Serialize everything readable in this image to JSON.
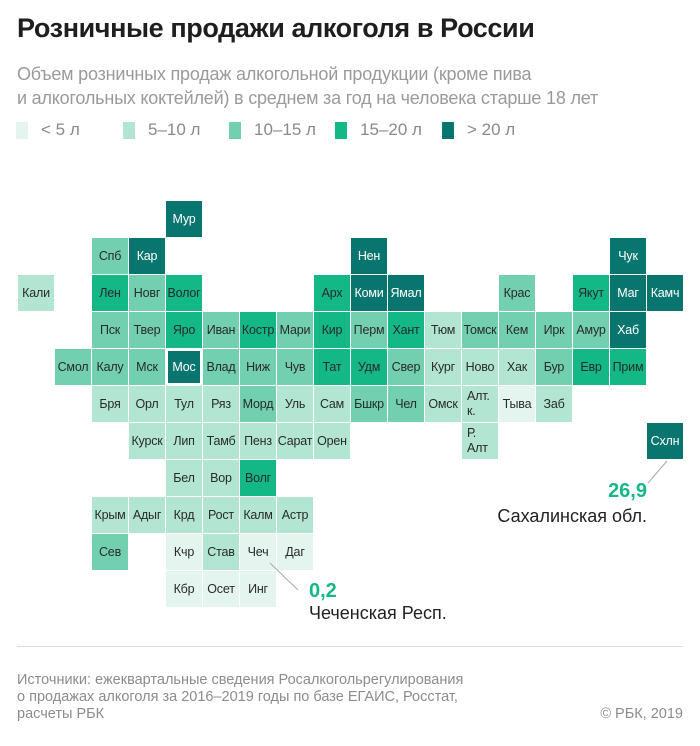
{
  "header": {
    "title": "Розничные продажи алкоголя в России",
    "subtitle_line1": "Объем розничных продаж алкогольной продукции (кроме пива",
    "subtitle_line2": "и алкогольных коктейлей) в среднем за год на человека старше 18 лет"
  },
  "chart_data": {
    "type": "heatmap",
    "subtype": "tile-grid map",
    "title": "Розничные продажи алкоголя в России",
    "unit": "л на человека старше 18 лет в год",
    "legend": [
      {
        "label": "< 5 л",
        "color": "#e3f5ee"
      },
      {
        "label": "5–10 л",
        "color": "#b2e6d2"
      },
      {
        "label": "10–15 л",
        "color": "#72d0b1"
      },
      {
        "label": "15–20 л",
        "color": "#14b886"
      },
      {
        "label": "> 20 л",
        "color": "#08756e"
      }
    ],
    "rows": [
      {
        "cells": [
          {
            "label": "Мур",
            "level": 4
          }
        ]
      },
      {
        "cells": [
          {
            "label": "Спб",
            "level": 2
          },
          {
            "label": "Кар",
            "level": 4
          },
          {
            "label": "Нен",
            "level": 4
          },
          {
            "label": "Чук",
            "level": 4
          }
        ]
      },
      {
        "cells": [
          {
            "label": "Кали",
            "level": 1
          },
          {
            "label": "Лен",
            "level": 3
          },
          {
            "label": "Новг",
            "level": 2
          },
          {
            "label": "Волог",
            "level": 3
          },
          {
            "label": "Арх",
            "level": 3
          },
          {
            "label": "Коми",
            "level": 4
          },
          {
            "label": "Ямал",
            "level": 4
          },
          {
            "label": "Крас",
            "level": 2
          },
          {
            "label": "Якут",
            "level": 3
          },
          {
            "label": "Маг",
            "level": 4
          },
          {
            "label": "Камч",
            "level": 4
          }
        ]
      },
      {
        "cells": [
          {
            "label": "Пск",
            "level": 2
          },
          {
            "label": "Твер",
            "level": 2
          },
          {
            "label": "Яро",
            "level": 3
          },
          {
            "label": "Иван",
            "level": 2
          },
          {
            "label": "Костр",
            "level": 3
          },
          {
            "label": "Мари",
            "level": 2
          },
          {
            "label": "Кир",
            "level": 3
          },
          {
            "label": "Перм",
            "level": 2
          },
          {
            "label": "Хант",
            "level": 3
          },
          {
            "label": "Тюм",
            "level": 1
          },
          {
            "label": "Томск",
            "level": 2
          },
          {
            "label": "Кем",
            "level": 2
          },
          {
            "label": "Ирк",
            "level": 2
          },
          {
            "label": "Амур",
            "level": 2
          },
          {
            "label": "Хаб",
            "level": 4
          }
        ]
      },
      {
        "cells": [
          {
            "label": "Смол",
            "level": 2
          },
          {
            "label": "Калу",
            "level": 2
          },
          {
            "label": "Мск",
            "level": 2
          },
          {
            "label": "Мос",
            "level": 4
          },
          {
            "label": "Влад",
            "level": 2
          },
          {
            "label": "Ниж",
            "level": 2
          },
          {
            "label": "Чув",
            "level": 2
          },
          {
            "label": "Тат",
            "level": 3
          },
          {
            "label": "Удм",
            "level": 3
          },
          {
            "label": "Свер",
            "level": 2
          },
          {
            "label": "Кург",
            "level": 1
          },
          {
            "label": "Ново",
            "level": 1
          },
          {
            "label": "Хак",
            "level": 1
          },
          {
            "label": "Бур",
            "level": 2
          },
          {
            "label": "Евр",
            "level": 3
          },
          {
            "label": "Прим",
            "level": 3
          }
        ]
      },
      {
        "cells": [
          {
            "label": "Бря",
            "level": 1
          },
          {
            "label": "Орл",
            "level": 1
          },
          {
            "label": "Тул",
            "level": 1
          },
          {
            "label": "Ряз",
            "level": 1
          },
          {
            "label": "Морд",
            "level": 2
          },
          {
            "label": "Уль",
            "level": 1
          },
          {
            "label": "Сам",
            "level": 1
          },
          {
            "label": "Бшкр",
            "level": 2
          },
          {
            "label": "Чел",
            "level": 2
          },
          {
            "label": "Омск",
            "level": 1
          },
          {
            "label": "Алт. к.",
            "level": 1
          },
          {
            "label": "Тыва",
            "level": 0
          },
          {
            "label": "Заб",
            "level": 1
          }
        ]
      },
      {
        "cells": [
          {
            "label": "Курск",
            "level": 1
          },
          {
            "label": "Лип",
            "level": 1
          },
          {
            "label": "Тамб",
            "level": 1
          },
          {
            "label": "Пенз",
            "level": 1
          },
          {
            "label": "Сарат",
            "level": 1
          },
          {
            "label": "Орен",
            "level": 1
          },
          {
            "label": "Р. Алт",
            "level": 1
          },
          {
            "label": "Схлн",
            "level": 4
          }
        ]
      },
      {
        "cells": [
          {
            "label": "Бел",
            "level": 1
          },
          {
            "label": "Вор",
            "level": 1
          },
          {
            "label": "Волг",
            "level": 3
          }
        ]
      },
      {
        "cells": [
          {
            "label": "Крым",
            "level": 1
          },
          {
            "label": "Адыг",
            "level": 1
          },
          {
            "label": "Крд",
            "level": 1
          },
          {
            "label": "Рост",
            "level": 1
          },
          {
            "label": "Калм",
            "level": 1
          },
          {
            "label": "Астр",
            "level": 1
          }
        ]
      },
      {
        "cells": [
          {
            "label": "Сев",
            "level": 2
          },
          {
            "label": "Кчр",
            "level": 0
          },
          {
            "label": "Став",
            "level": 1
          },
          {
            "label": "Чеч",
            "level": 0
          },
          {
            "label": "Даг",
            "level": 0
          }
        ]
      },
      {
        "cells": [
          {
            "label": "Кбр",
            "level": 0
          },
          {
            "label": "Осет",
            "level": 0
          },
          {
            "label": "Инг",
            "level": 0
          }
        ]
      }
    ],
    "annotations": [
      {
        "region": "Чеч",
        "value": "0,2",
        "label": "Чеченская Респ."
      },
      {
        "region": "Схлн",
        "value": "26,9",
        "label": "Сахалинская обл."
      }
    ]
  },
  "footer": {
    "source_line1": "Источники: ежеквартальные сведения Росалкогольрегулирования",
    "source_line2": "о продажах алкоголя за 2016–2019 годы по базе ЕГАИС, Росстат,",
    "source_line3": "расчеты РБК",
    "copyright": "© РБК, 2019"
  }
}
